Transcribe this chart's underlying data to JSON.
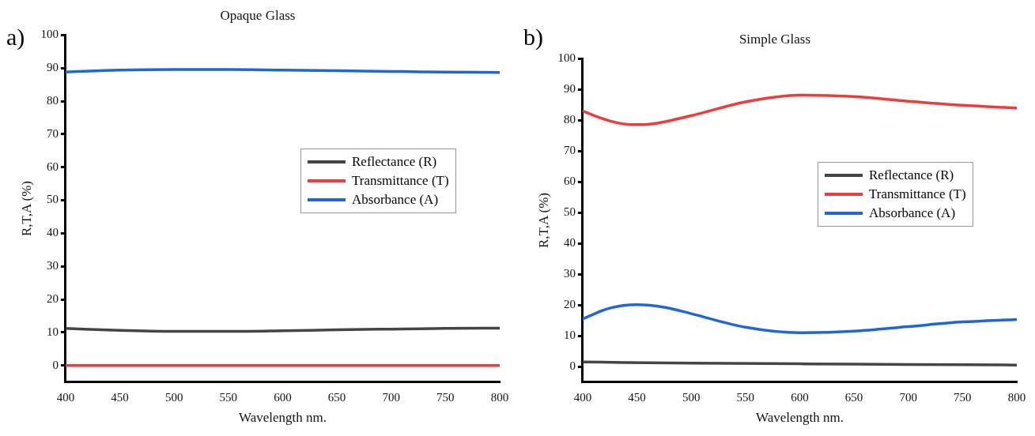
{
  "chart_data": [
    {
      "type": "line",
      "title": "Opaque Glass",
      "xlabel": "Wavelength nm.",
      "ylabel": "R,T,A (%)",
      "annotations": [
        "a)"
      ],
      "xlim": [
        400,
        800
      ],
      "xticks": [
        400,
        450,
        500,
        550,
        600,
        650,
        700,
        750,
        800
      ],
      "ylim": [
        -5,
        100
      ],
      "yticks": [
        0,
        10,
        20,
        30,
        40,
        50,
        60,
        70,
        80,
        90,
        100
      ],
      "grid": false,
      "legend": "right",
      "marker": "none",
      "line_style": "solid",
      "series": [
        {
          "name": "Reflectance (R)",
          "color": "#454545",
          "x": [
            400,
            450,
            500,
            550,
            600,
            650,
            700,
            750,
            800
          ],
          "values": [
            11.2,
            10.6,
            10.3,
            10.3,
            10.5,
            10.8,
            11.0,
            11.2,
            11.3
          ]
        },
        {
          "name": "Transmittance (T)",
          "color": "#ee3b3b",
          "x": [
            400,
            500,
            600,
            700,
            800
          ],
          "values": [
            0,
            0,
            0,
            0,
            0
          ]
        },
        {
          "name": "Absorbance (A)",
          "color": "#1f66d6",
          "x": [
            400,
            450,
            500,
            550,
            600,
            650,
            700,
            750,
            800
          ],
          "values": [
            88.8,
            89.4,
            89.6,
            89.6,
            89.4,
            89.2,
            89.0,
            88.8,
            88.7
          ]
        }
      ]
    },
    {
      "type": "line",
      "title": "Simple Glass",
      "xlabel": "Wavelength nm.",
      "ylabel": "R,T,A (%)",
      "annotations": [
        "b)"
      ],
      "xlim": [
        400,
        800
      ],
      "xticks": [
        400,
        450,
        500,
        550,
        600,
        650,
        700,
        750,
        800
      ],
      "ylim": [
        -5,
        100
      ],
      "yticks": [
        0,
        10,
        20,
        30,
        40,
        50,
        60,
        70,
        80,
        90,
        100
      ],
      "grid": false,
      "legend": "right",
      "marker": "none",
      "line_style": "solid",
      "series": [
        {
          "name": "Reflectance (R)",
          "color": "#454545",
          "x": [
            400,
            500,
            600,
            700,
            800
          ],
          "values": [
            1.5,
            1.1,
            0.9,
            0.7,
            0.5
          ]
        },
        {
          "name": "Transmittance (T)",
          "color": "#ee3b3b",
          "x": [
            400,
            425,
            445,
            460,
            500,
            550,
            600,
            650,
            700,
            750,
            800
          ],
          "values": [
            83,
            79.8,
            78.6,
            78.7,
            81.5,
            86,
            88.2,
            87.7,
            86.2,
            84.9,
            84
          ]
        },
        {
          "name": "Absorbance (A)",
          "color": "#1f66d6",
          "x": [
            400,
            425,
            450,
            475,
            500,
            550,
            600,
            650,
            700,
            750,
            800
          ],
          "values": [
            15.5,
            19,
            20.1,
            19.3,
            17.2,
            12.8,
            11,
            11.5,
            13,
            14.5,
            15.3
          ]
        }
      ]
    }
  ]
}
